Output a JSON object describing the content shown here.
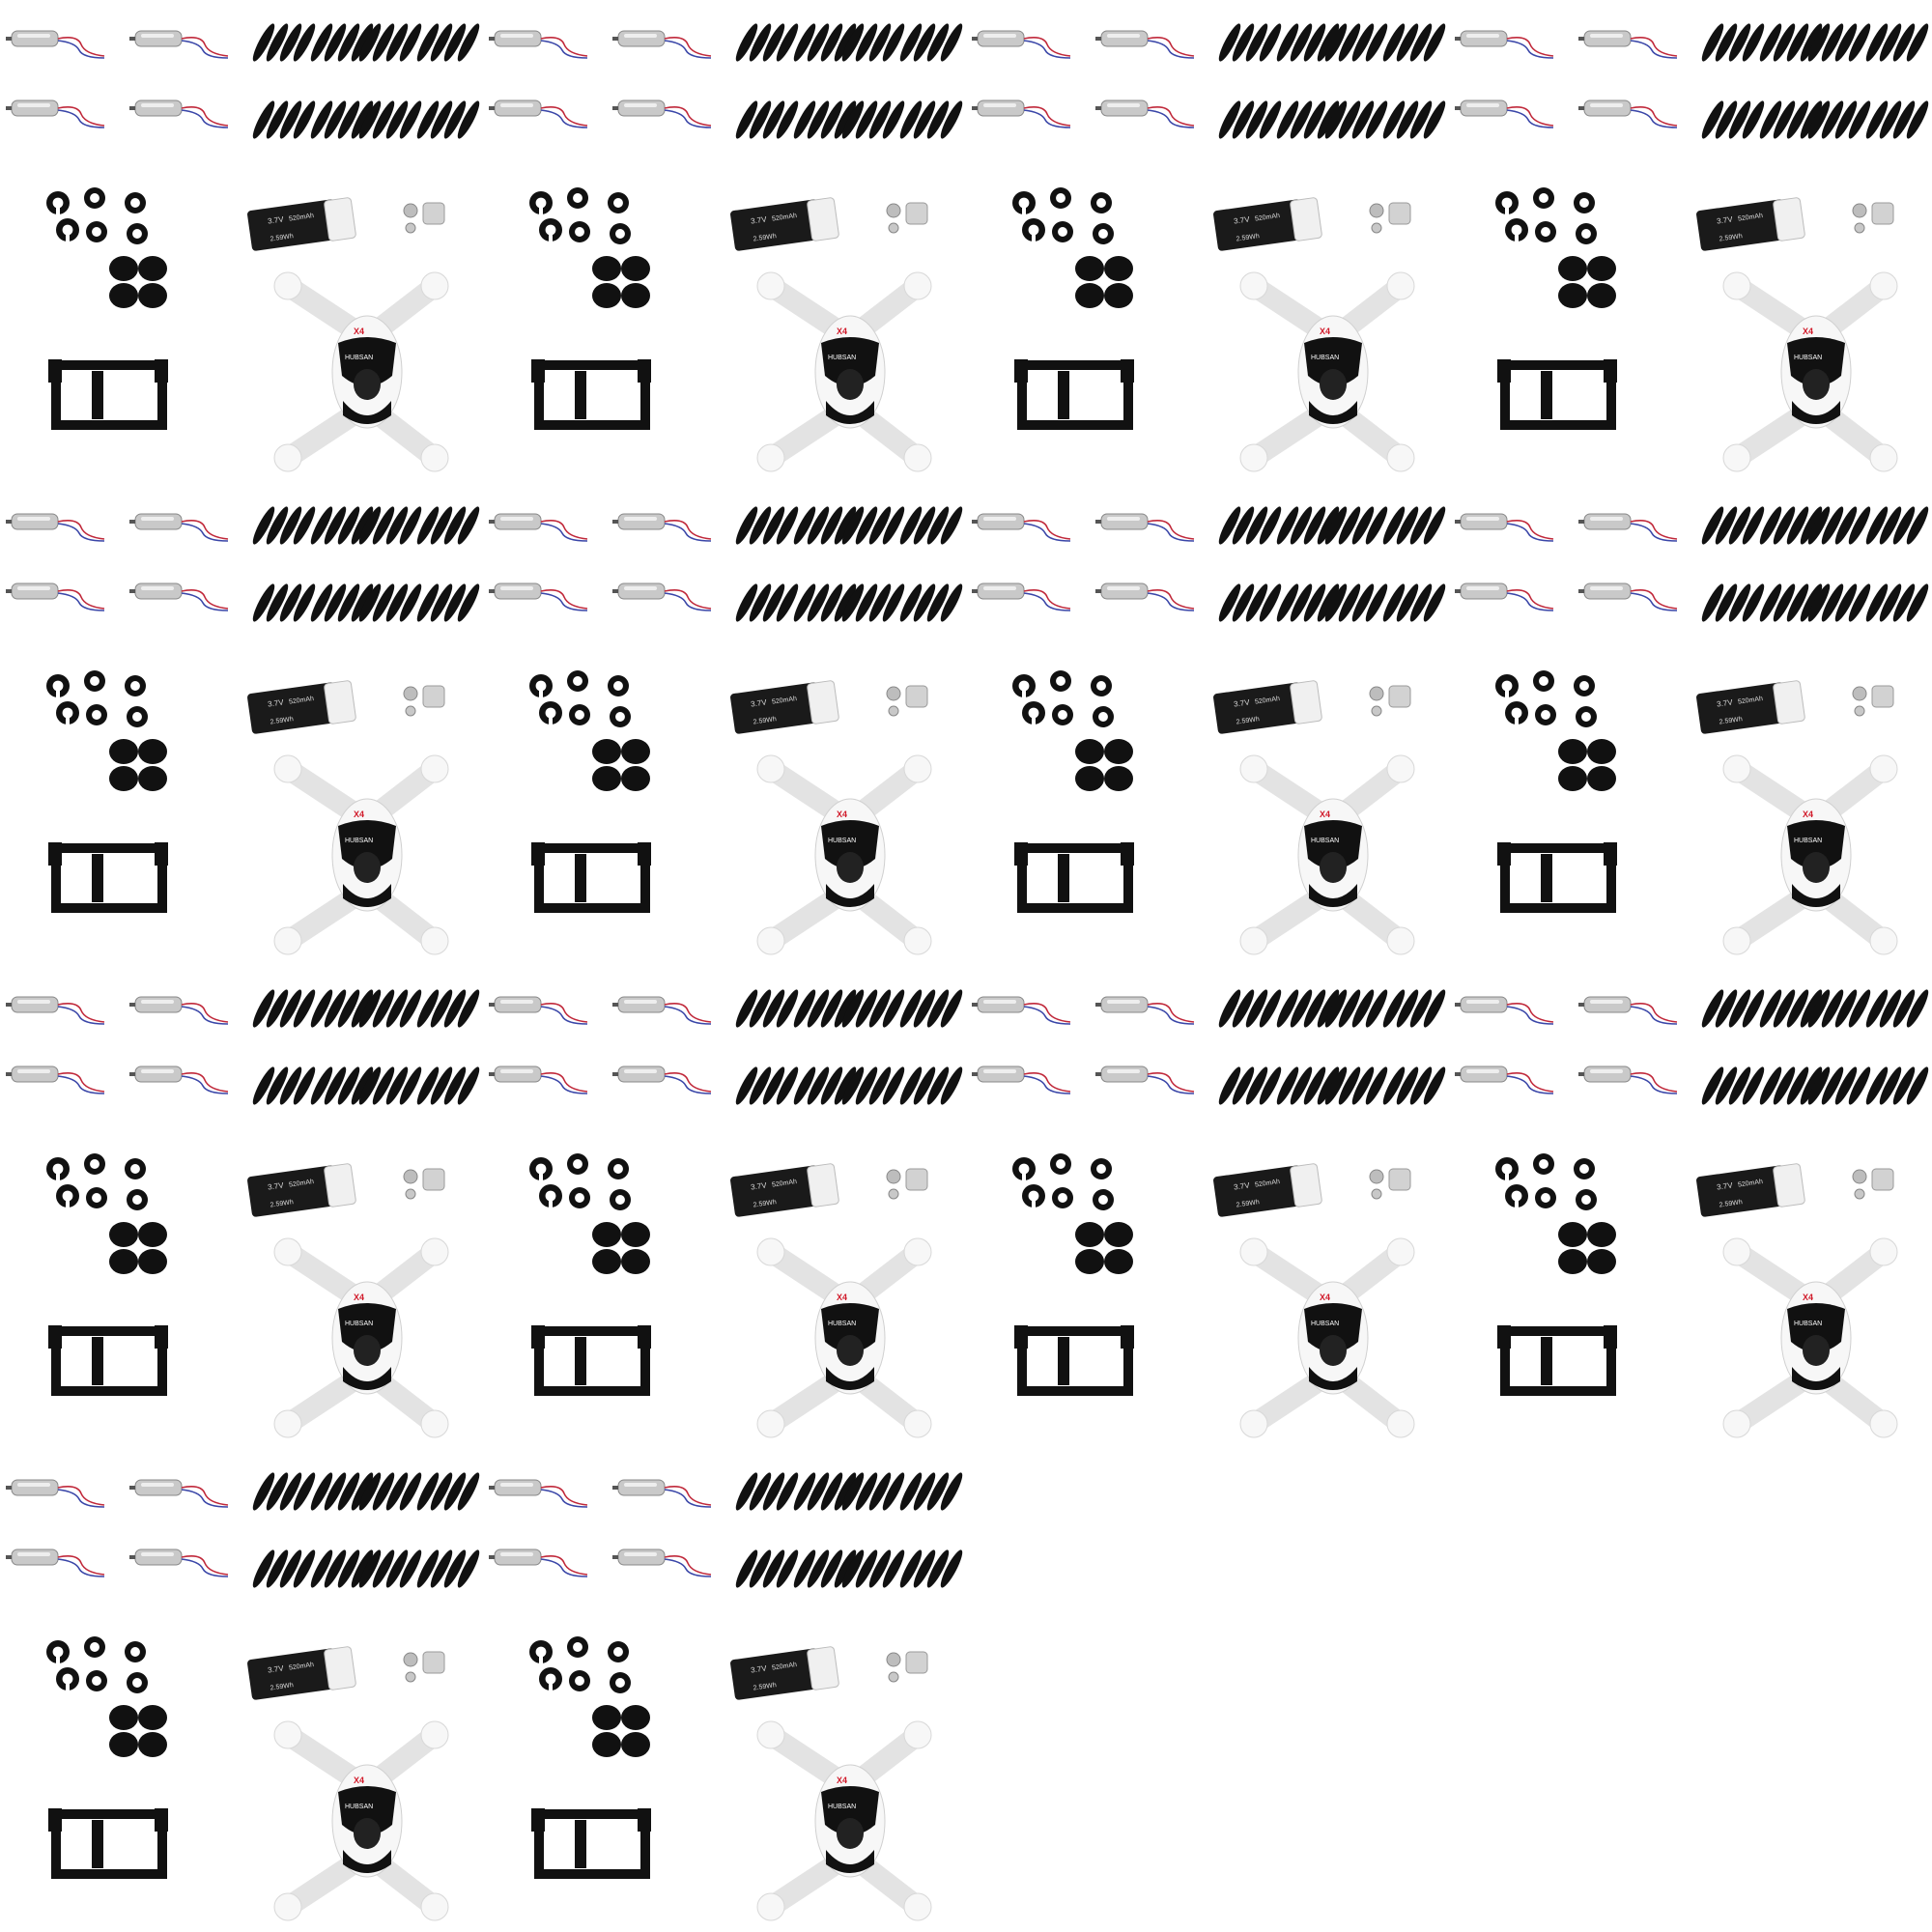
{
  "image": {
    "description_free": true,
    "tile_count": 14,
    "columns": 4,
    "battery_label_voltage": "3.7V",
    "battery_label_capacity": "520mAh",
    "battery_label_energy": "2.59Wh",
    "shell_brand": "HUBSAN",
    "shell_model": "X4",
    "colors": {
      "background": "#ffffff",
      "black_part": "#111111",
      "motor_silver": "#c9c9c9",
      "wire_red": "#c0283a",
      "wire_blue": "#3a46a8",
      "shell_white": "#f7f7f7",
      "brand_red": "#d11a2a"
    }
  }
}
